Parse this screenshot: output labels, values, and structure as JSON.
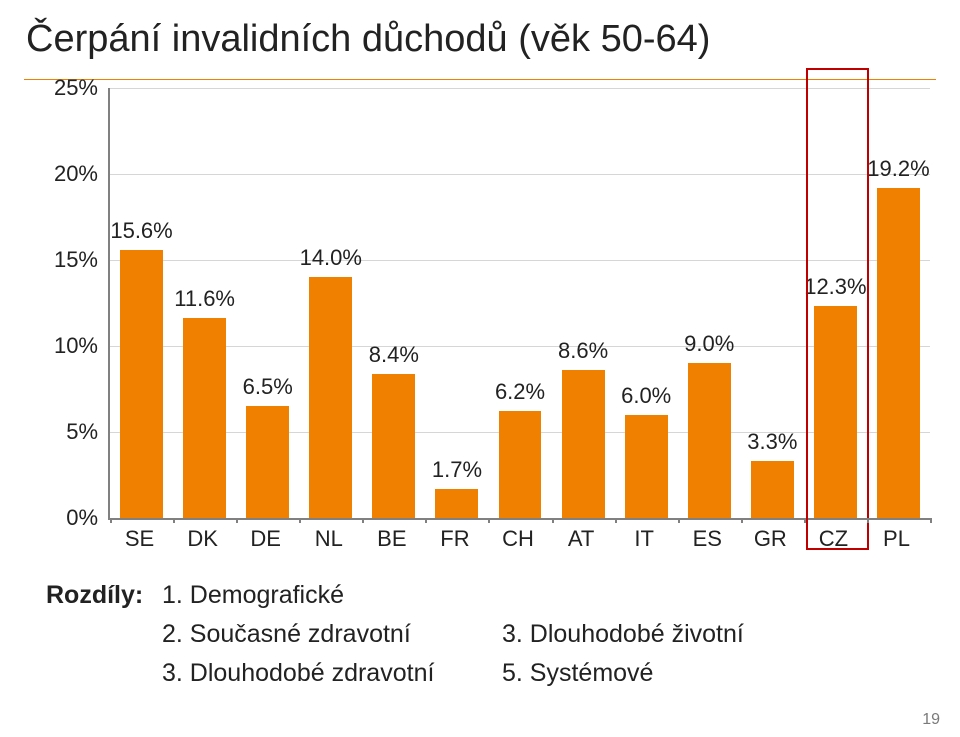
{
  "title": "Čerpání invalidních důchodů (věk 50-64)",
  "colors": {
    "accent": "#f08000",
    "grid": "#d6d6d6",
    "axis": "#808080",
    "bar": "#f08000",
    "highlight_box": "#c00000",
    "text": "#222222"
  },
  "chart": {
    "type": "bar",
    "ylim": [
      0,
      25
    ],
    "ytick_step": 5,
    "yticks": [
      "0%",
      "5%",
      "10%",
      "15%",
      "20%",
      "25%"
    ],
    "categories": [
      "SE",
      "DK",
      "DE",
      "NL",
      "BE",
      "FR",
      "CH",
      "AT",
      "IT",
      "ES",
      "GR",
      "CZ",
      "PL"
    ],
    "values": [
      15.6,
      11.6,
      6.5,
      14.0,
      8.4,
      1.7,
      6.2,
      8.6,
      6.0,
      9.0,
      3.3,
      12.3,
      19.2
    ],
    "value_labels": [
      "15.6%",
      "11.6%",
      "6.5%",
      "14.0%",
      "8.4%",
      "1.7%",
      "6.2%",
      "8.6%",
      "6.0%",
      "9.0%",
      "3.3%",
      "12.3%",
      "19.2%"
    ],
    "highlight_index": 11,
    "bar_color": "#f08000",
    "background_color": "#ffffff",
    "axis_fontsize": 22,
    "value_fontsize": 22
  },
  "legend": {
    "label": "Rozdíly:",
    "items_col1": [
      "1. Demografické",
      "2. Současné zdravotní",
      "3. Dlouhodobé zdravotní"
    ],
    "items_col2": [
      "",
      "3. Dlouhodobé životní",
      "5. Systémové"
    ]
  },
  "page_number": "19"
}
